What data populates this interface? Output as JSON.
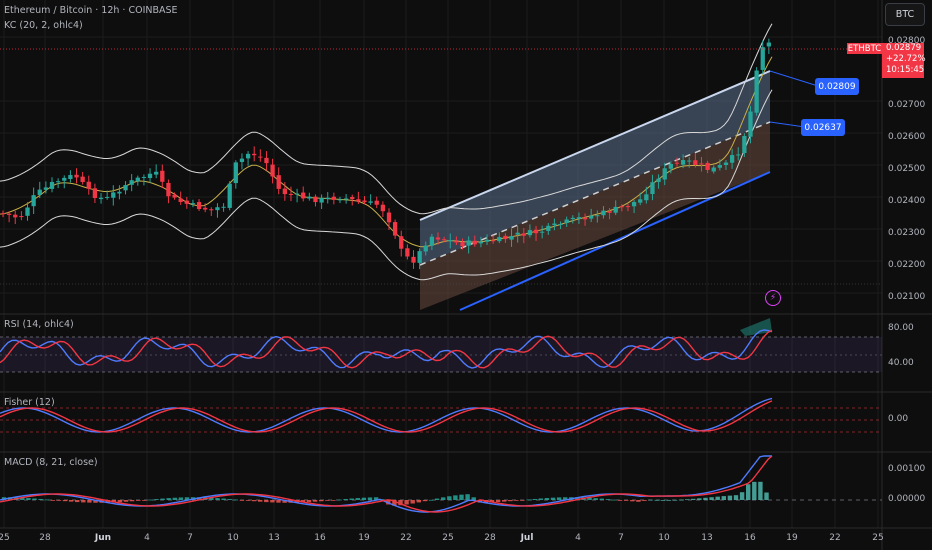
{
  "header": {
    "symbol_title": "Ethereum / Bitcoin · 12h · COINBASE",
    "indicator_kc": "KC (20, 2, ohlc4)",
    "ticker_button": "BTC"
  },
  "price": {
    "tag": "ETHBTC",
    "last": "0.02879",
    "change": "+22.72%",
    "countdown": "10:15:45",
    "upper_target": "0.02809",
    "mid_target": "0.02637"
  },
  "panes": {
    "rsi": {
      "title": "RSI (14, ohlc4)",
      "axis": [
        "80.00",
        "40.00"
      ]
    },
    "fisher": {
      "title": "Fisher (12)",
      "axis": [
        "0.00"
      ]
    },
    "macd": {
      "title": "MACD (8, 21, close)",
      "axis": [
        "0.00100",
        "0.00000"
      ]
    }
  },
  "price_axis": [
    "0.02800",
    "0.02700",
    "0.02600",
    "0.02500",
    "0.02400",
    "0.02300",
    "0.02200",
    "0.02100"
  ],
  "time_axis": [
    "25",
    "28",
    "Jun",
    "4",
    "7",
    "10",
    "13",
    "16",
    "19",
    "22",
    "25",
    "28",
    "Jul",
    "4",
    "7",
    "10",
    "13",
    "16",
    "19",
    "22",
    "25"
  ],
  "colors": {
    "up": "#26a69a",
    "down": "#f23645",
    "channel_upper": "#b2c7e6",
    "channel_lower": "#2962ff",
    "rsi_line": "#4e7bff",
    "signal_line": "#f23645",
    "kc_basis": "#c8b04a"
  }
}
